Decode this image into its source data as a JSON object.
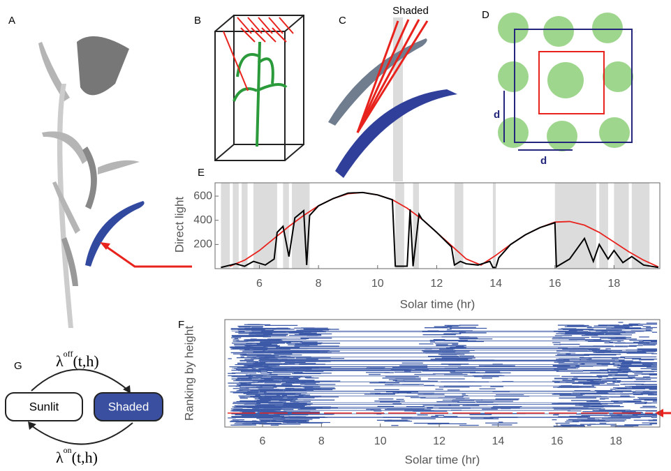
{
  "panels": {
    "labels": [
      "A",
      "B",
      "C",
      "D",
      "E",
      "F",
      "G"
    ],
    "c_annotation": "Shaded",
    "d_labels": [
      "d",
      "d"
    ]
  },
  "diagram": {
    "states": [
      "Sunlit",
      "Shaded"
    ],
    "rate_off": {
      "symbol": "λ",
      "sup": "off",
      "args": "(t,h)"
    },
    "rate_on": {
      "symbol": "λ",
      "sup": "on",
      "args": "(t,h)"
    }
  },
  "chart_data": [
    {
      "type": "line",
      "xlabel": "Solar time (hr)",
      "ylabel": "Direct light",
      "xlim": [
        4.5,
        19.55
      ],
      "ylim": [
        0,
        710
      ],
      "xticks": [
        6,
        8,
        10,
        12,
        14,
        16,
        18
      ],
      "yticks": [
        200,
        400,
        600
      ],
      "shaded_intervals": [
        [
          4.7,
          5.0
        ],
        [
          5.1,
          5.3
        ],
        [
          5.4,
          5.6
        ],
        [
          5.8,
          6.6
        ],
        [
          6.8,
          7.0
        ],
        [
          7.1,
          7.7
        ],
        [
          10.6,
          10.9
        ],
        [
          11.2,
          11.4
        ],
        [
          12.6,
          12.9
        ],
        [
          13.9,
          14.0
        ],
        [
          16.0,
          17.4
        ],
        [
          17.5,
          17.8
        ],
        [
          18.0,
          18.5
        ],
        [
          18.6,
          19.2
        ]
      ],
      "shade_color": "#dcdcdc",
      "series": [
        {
          "color": "#e8221c",
          "x": [
            5,
            5.5,
            6,
            6.5,
            7,
            7.5,
            8,
            8.5,
            9,
            9.5,
            10,
            10.5,
            11,
            11.5,
            12,
            12.5,
            13,
            13.5,
            14,
            14.5,
            15,
            15.5,
            16,
            16.5,
            17,
            17.5,
            18,
            18.5,
            19,
            19.5
          ],
          "values": [
            20,
            70,
            150,
            250,
            350,
            440,
            520,
            580,
            620,
            630,
            610,
            570,
            500,
            410,
            300,
            190,
            80,
            30,
            110,
            200,
            280,
            340,
            385,
            390,
            360,
            300,
            220,
            140,
            70,
            15
          ]
        },
        {
          "color": "#000000",
          "x": [
            4.7,
            5.2,
            5.5,
            5.8,
            6.2,
            6.5,
            6.6,
            6.8,
            7.0,
            7.2,
            7.5,
            7.6,
            7.7,
            8,
            8.5,
            9,
            9.5,
            10,
            10.5,
            10.6,
            10.7,
            11,
            11.1,
            11.2,
            11.4,
            11.5,
            12,
            12.5,
            12.6,
            12.8,
            13.0,
            13.4,
            13.8,
            13.9,
            14.0,
            14.1,
            14.5,
            15,
            15.5,
            16,
            16.05,
            16.5,
            17,
            17.3,
            17.5,
            17.8,
            18,
            18.3,
            18.6,
            19,
            19.5
          ],
          "values": [
            10,
            40,
            20,
            60,
            30,
            80,
            300,
            350,
            100,
            420,
            480,
            30,
            440,
            520,
            580,
            625,
            630,
            610,
            570,
            20,
            20,
            20,
            490,
            20,
            450,
            410,
            300,
            180,
            30,
            60,
            40,
            30,
            60,
            10,
            10,
            90,
            200,
            280,
            340,
            380,
            15,
            80,
            250,
            60,
            200,
            80,
            150,
            50,
            100,
            30,
            10
          ]
        }
      ]
    },
    {
      "type": "raster",
      "xlabel": "Solar time (hr)",
      "ylabel": "Ranking by height",
      "xlim": [
        4.72,
        19.49
      ],
      "xticks": [
        6,
        8,
        10,
        12,
        14,
        16,
        18
      ],
      "color": "#3c5aa8"
    }
  ]
}
